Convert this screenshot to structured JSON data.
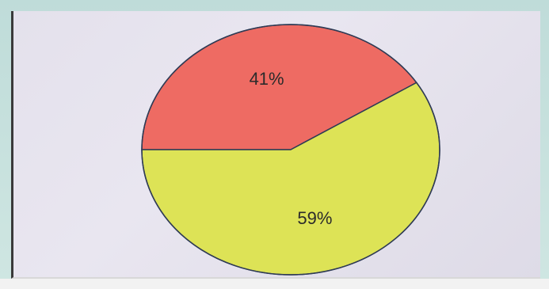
{
  "chart_data": {
    "type": "pie",
    "title": "",
    "slices": [
      {
        "label": "41%",
        "value": 41,
        "color": "#ee6b63"
      },
      {
        "label": "59%",
        "value": 59,
        "color": "#dde356"
      }
    ]
  },
  "colors": {
    "panel_background": "#e6e3ee",
    "frame": "#c9e2de",
    "slice_outline": "#2f3b55"
  }
}
